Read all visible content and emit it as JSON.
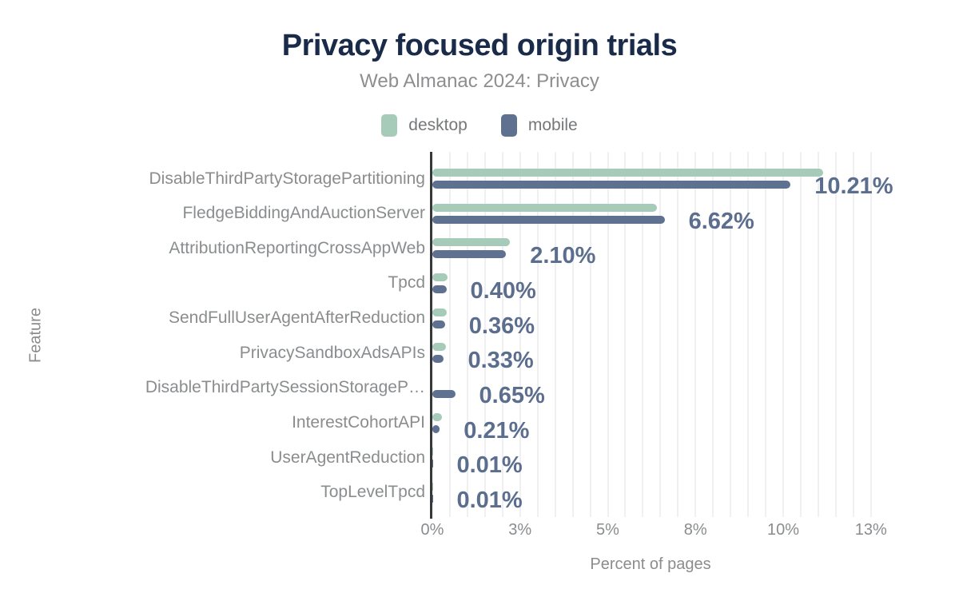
{
  "title": "Privacy focused origin trials",
  "subtitle": "Web Almanac 2024: Privacy",
  "colors": {
    "title": "#1a2b4a",
    "muted_text": "#8a8c8e",
    "value_label": "#5b6e8e",
    "desktop": "#a6cbb8",
    "mobile": "#5e7190",
    "axis_line": "#37383a",
    "gridline": "#f0f0f3"
  },
  "chart_data": {
    "type": "bar",
    "orientation": "horizontal",
    "title": "Privacy focused origin trials",
    "subtitle": "Web Almanac 2024: Privacy",
    "xlabel": "Percent of pages",
    "ylabel": "Feature",
    "legend_position": "top",
    "grid": "minor vertical gridlines every 0.5%",
    "xlim": [
      0,
      12.5
    ],
    "minor_grid_step": 0.5,
    "categories": [
      "DisableThirdPartyStoragePartitioning",
      "FledgeBiddingAndAuctionServer",
      "AttributionReportingCrossAppWeb",
      "Tpcd",
      "SendFullUserAgentAfterReduction",
      "PrivacySandboxAdsAPIs",
      "DisableThirdPartySessionStorageP…",
      "InterestCohortAPI",
      "UserAgentReduction",
      "TopLevelTpcd"
    ],
    "series": [
      {
        "name": "desktop",
        "color": "#a6cbb8",
        "values": [
          11.15,
          6.4,
          2.2,
          0.43,
          0.41,
          0.38,
          0.0,
          0.27,
          0.01,
          0.01
        ]
      },
      {
        "name": "mobile",
        "color": "#5e7190",
        "values": [
          10.21,
          6.62,
          2.1,
          0.4,
          0.36,
          0.33,
          0.65,
          0.21,
          0.01,
          0.01
        ]
      }
    ],
    "data_labels": [
      "10.21%",
      "6.62%",
      "2.10%",
      "0.40%",
      "0.36%",
      "0.33%",
      "0.65%",
      "0.21%",
      "0.01%",
      "0.01%"
    ],
    "data_labels_series": "mobile",
    "xticks": [
      {
        "value": 0,
        "label": "0%"
      },
      {
        "value": 2.5,
        "label": "3%"
      },
      {
        "value": 5,
        "label": "5%"
      },
      {
        "value": 7.5,
        "label": "8%"
      },
      {
        "value": 10,
        "label": "10%"
      },
      {
        "value": 12.5,
        "label": "13%"
      }
    ]
  }
}
